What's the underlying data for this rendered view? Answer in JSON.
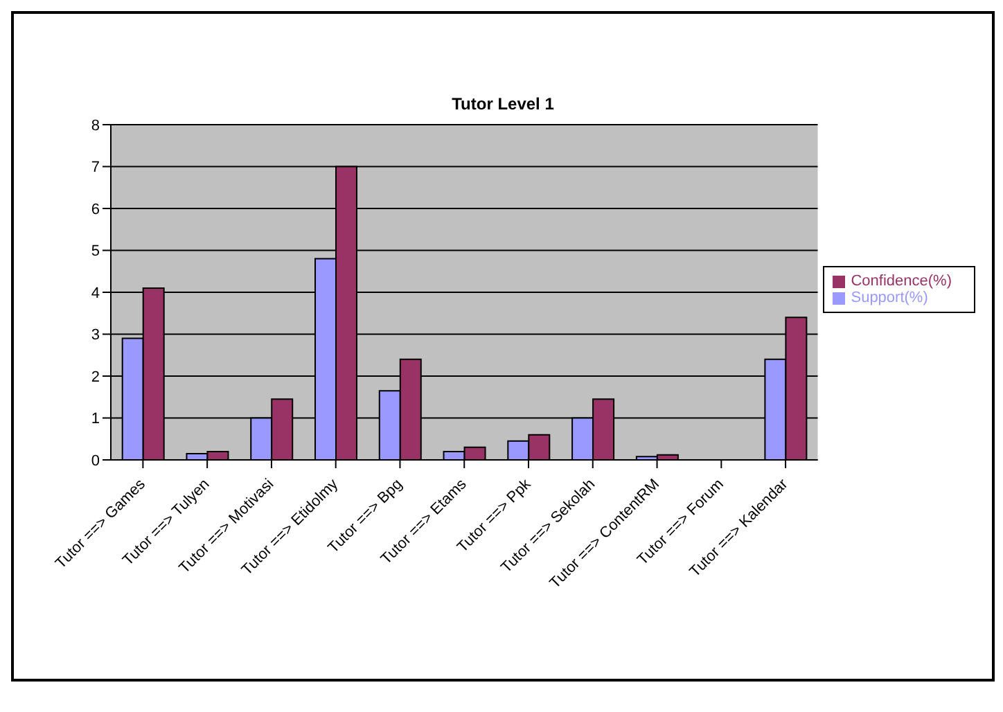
{
  "chart_data": {
    "type": "bar",
    "title": "Tutor Level 1",
    "categories": [
      "Tutor ==> Games",
      "Tutor ==> Tulyen",
      "Tutor ==> Motivasi",
      "Tutor ==> Etidolmy",
      "Tutor ==> Bpg",
      "Tutor ==> Etams",
      "Tutor ==> Ppk",
      "Tutor ==> Sekolah",
      "Tutor ==> ContentRM",
      "Tutor ==> Forum",
      "Tutor ==> Kalendar"
    ],
    "series": [
      {
        "name": "Support(%)",
        "color": "#9999ff",
        "values": [
          2.9,
          0.15,
          1.0,
          4.8,
          1.65,
          0.2,
          0.45,
          1.0,
          0.08,
          0,
          2.4
        ]
      },
      {
        "name": "Confidence(%)",
        "color": "#993366",
        "values": [
          4.1,
          0.2,
          1.45,
          7.0,
          2.4,
          0.3,
          0.6,
          1.45,
          0.12,
          0,
          3.4
        ]
      }
    ],
    "ylim": [
      0,
      8
    ],
    "yticks": [
      0,
      1,
      2,
      3,
      4,
      5,
      6,
      7,
      8
    ],
    "grid": "y",
    "legend": "right"
  }
}
